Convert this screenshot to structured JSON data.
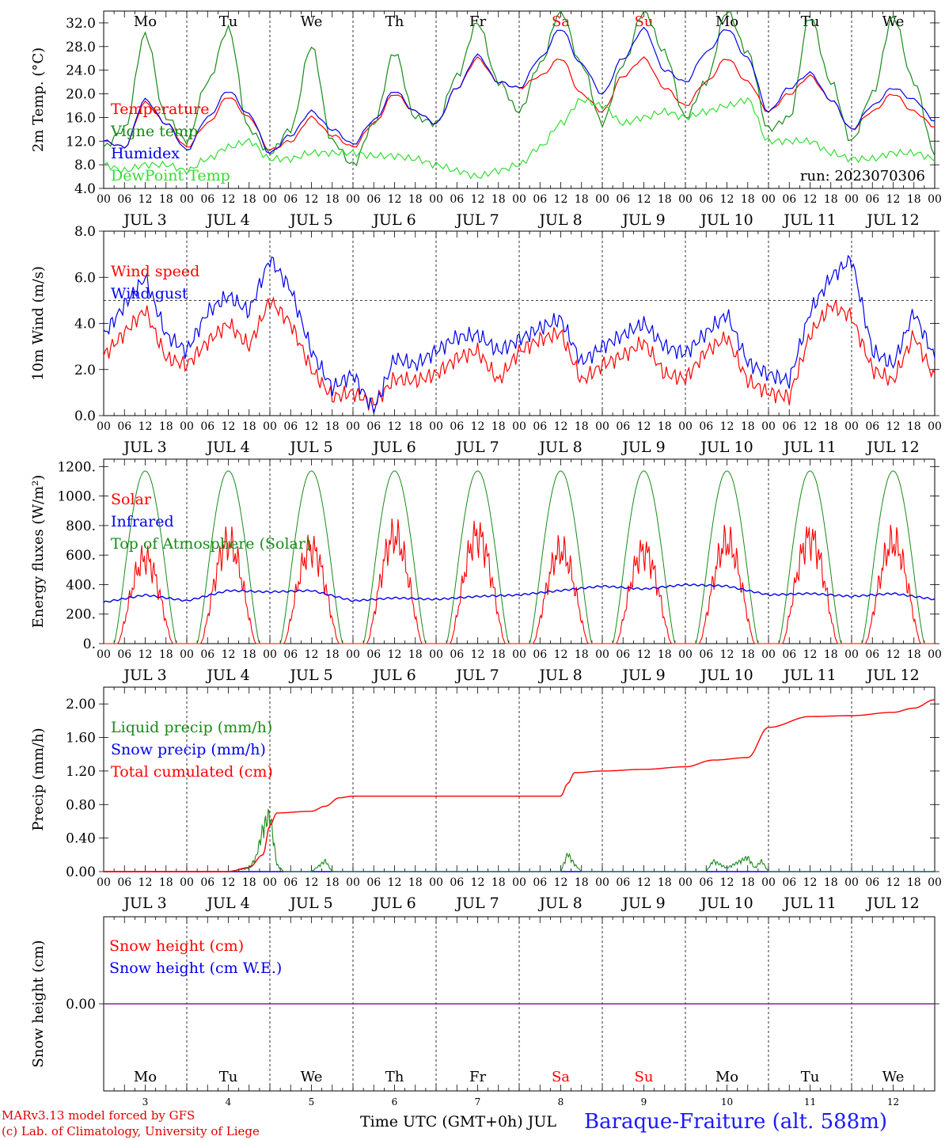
{
  "days": [
    {
      "dow": "Mo",
      "dom": "3",
      "weekend": false
    },
    {
      "dow": "Tu",
      "dom": "4",
      "weekend": false
    },
    {
      "dow": "We",
      "dom": "5",
      "weekend": false
    },
    {
      "dow": "Th",
      "dom": "6",
      "weekend": false
    },
    {
      "dow": "Fr",
      "dom": "7",
      "weekend": false
    },
    {
      "dow": "Sa",
      "dom": "8",
      "weekend": true
    },
    {
      "dow": "Su",
      "dom": "9",
      "weekend": true
    },
    {
      "dow": "Mo",
      "dom": "10",
      "weekend": false
    },
    {
      "dow": "Tu",
      "dom": "11",
      "weekend": false
    },
    {
      "dow": "We",
      "dom": "12",
      "weekend": false
    }
  ],
  "hour_ticks": [
    "00",
    "06",
    "12",
    "18"
  ],
  "month_label": "JUL",
  "colors": {
    "red": "#ff0000",
    "green": "#1a8a1a",
    "blue": "#0000ee",
    "lightgreen": "#33dd33",
    "purple": "#7a2b8a",
    "weekend": "#ff0000"
  },
  "footer": {
    "credit1": "MARv3.13 model forced by GFS",
    "credit2": "(c) Lab. of Climatology, University of Liege",
    "xunits": "Time UTC (GMT+0h) JUL",
    "station": "Baraque-Fraiture (alt. 588m)"
  },
  "chart_data": [
    {
      "type": "line",
      "ylabel": "2m Temp. (oC)",
      "ylim": [
        4,
        34
      ],
      "yticks": [
        "4.0",
        "8.0",
        "12.0",
        "16.0",
        "20.0",
        "24.0",
        "28.0",
        "32.0"
      ],
      "annotation": "run: 2023070306",
      "x_hours": [
        0,
        6,
        12,
        18,
        24,
        30,
        36,
        42,
        48,
        54,
        60,
        66,
        72,
        78,
        84,
        90,
        96,
        102,
        108,
        114,
        120,
        126,
        132,
        138,
        144,
        150,
        156,
        162,
        168,
        174,
        180,
        186,
        192,
        198,
        204,
        210,
        216,
        222,
        228,
        234,
        240
      ],
      "series": [
        {
          "name": "Temperature",
          "color": "red",
          "values": [
            12,
            11,
            18.5,
            15,
            11,
            15,
            19.5,
            16,
            10.5,
            12,
            16,
            13,
            11,
            15,
            20,
            17,
            15,
            21,
            26,
            22,
            21,
            23,
            26,
            20,
            17,
            23,
            26,
            21,
            18,
            22,
            26,
            22,
            17,
            20,
            23,
            19,
            14,
            17,
            20,
            17,
            14.5
          ]
        },
        {
          "name": "Vigne temp",
          "color": "green",
          "values": [
            11,
            14,
            30,
            16,
            12,
            22,
            31,
            14,
            10,
            14,
            28,
            12,
            8,
            15,
            27,
            16,
            15,
            23,
            32,
            22,
            17,
            25,
            34,
            25,
            15,
            25,
            34,
            27,
            16,
            22,
            34,
            27,
            14,
            16,
            33,
            22,
            12,
            20,
            33,
            22,
            10
          ]
        },
        {
          "name": "Humidex",
          "color": "blue",
          "values": [
            12,
            11,
            19,
            15,
            10.5,
            16,
            20.5,
            16.5,
            10,
            13,
            17,
            14,
            11.5,
            15.5,
            20.5,
            17,
            15,
            21,
            26.5,
            22,
            21,
            26,
            31,
            25,
            20,
            26,
            31,
            24,
            22,
            27,
            31,
            26,
            17,
            21,
            23.5,
            19,
            14,
            18,
            21,
            19,
            15.5
          ]
        },
        {
          "name": "DewPoint Temp",
          "color": "lightgreen",
          "values": [
            8,
            7,
            8,
            8,
            7,
            9,
            11,
            12,
            9,
            9,
            10,
            10,
            10,
            9.5,
            9.5,
            9,
            8,
            7,
            6,
            7,
            8,
            11,
            15,
            19,
            18,
            15,
            16,
            17,
            16,
            17,
            18,
            19,
            12,
            12,
            12,
            10,
            9,
            9,
            10,
            10,
            9
          ]
        }
      ]
    },
    {
      "type": "line",
      "ylabel": "10m Wind (m/s)",
      "ylim": [
        0,
        8
      ],
      "yticks": [
        "0.0",
        "2.0",
        "4.0",
        "6.0",
        "8.0"
      ],
      "ref_line": 5,
      "x_hours": [
        0,
        6,
        12,
        18,
        24,
        30,
        36,
        42,
        48,
        54,
        60,
        66,
        72,
        78,
        84,
        90,
        96,
        102,
        108,
        114,
        120,
        126,
        132,
        138,
        144,
        150,
        156,
        162,
        168,
        174,
        180,
        186,
        192,
        198,
        204,
        210,
        216,
        222,
        228,
        234,
        240
      ],
      "series": [
        {
          "name": "Wind speed",
          "color": "red",
          "values": [
            2.6,
            3.6,
            4.6,
            2.5,
            2.2,
            3.2,
            4,
            3,
            5,
            4,
            2,
            0.8,
            1,
            0.5,
            1.6,
            1.5,
            1.8,
            2.5,
            2.8,
            1.5,
            2.8,
            3.3,
            3.6,
            1.5,
            2.2,
            2.6,
            3.2,
            1.8,
            1.6,
            2.8,
            3.4,
            1.5,
            1,
            0.8,
            3.5,
            4.8,
            4.3,
            2,
            1.5,
            3.5,
            1.6
          ]
        },
        {
          "name": "Wind gust",
          "color": "blue",
          "values": [
            3.5,
            4.8,
            6,
            3.5,
            2.8,
            4.5,
            5.2,
            4.5,
            6.8,
            5.5,
            2.8,
            1.2,
            1.8,
            0.2,
            2.5,
            2.2,
            2.8,
            3.4,
            3.5,
            2.8,
            3.3,
            3.8,
            4.2,
            2.3,
            3,
            3.5,
            4,
            3,
            2.7,
            3.6,
            4.4,
            2.3,
            1.8,
            1.5,
            4.5,
            6,
            6.8,
            2.8,
            2.2,
            4.5,
            2.5
          ]
        }
      ]
    },
    {
      "type": "line",
      "ylabel": "Energy fluxes (W/m2)",
      "ylim": [
        0,
        1250
      ],
      "yticks": [
        "0.",
        "200.",
        "400.",
        "600.",
        "800.",
        "1000.",
        "1200."
      ],
      "series": [
        {
          "name": "Solar",
          "color": "red",
          "peaks": [
            700,
            830,
            780,
            880,
            890,
            760,
            760,
            830,
            870,
            830
          ]
        },
        {
          "name": "Infrared",
          "color": "blue",
          "x_hours": [
            0,
            12,
            24,
            36,
            48,
            60,
            72,
            84,
            96,
            108,
            120,
            132,
            144,
            156,
            168,
            180,
            192,
            204,
            216,
            228,
            240
          ],
          "values": [
            280,
            330,
            290,
            360,
            350,
            360,
            290,
            310,
            300,
            320,
            330,
            360,
            390,
            370,
            400,
            390,
            330,
            340,
            320,
            340,
            300
          ]
        },
        {
          "name": "Top of Atmosphere (Solar)",
          "color": "green",
          "peak": 1170
        }
      ]
    },
    {
      "type": "line",
      "ylabel": "Precip (mm/h)",
      "ylim": [
        0,
        2.2
      ],
      "yticks": [
        "0.00",
        "0.40",
        "0.80",
        "1.20",
        "1.60",
        "2.00"
      ],
      "series": [
        {
          "name": "Liquid precip (mm/h)",
          "color": "green",
          "x_hours": [
            0,
            36,
            42,
            44,
            46,
            48,
            50,
            52,
            60,
            64,
            66,
            72,
            132,
            134,
            136,
            138,
            174,
            176,
            180,
            186,
            188,
            190,
            192,
            198,
            240
          ],
          "values": [
            0,
            0,
            0.05,
            0.2,
            0.6,
            0.8,
            0.1,
            0,
            0,
            0.15,
            0,
            0,
            0,
            0.25,
            0.1,
            0,
            0,
            0.15,
            0.05,
            0.2,
            0.05,
            0.15,
            0,
            0,
            0
          ]
        },
        {
          "name": "Snow precip (mm/h)",
          "color": "blue",
          "values": []
        },
        {
          "name": "Total cumulated (cm)",
          "color": "red",
          "x_hours": [
            0,
            36,
            42,
            46,
            48,
            50,
            60,
            64,
            68,
            72,
            120,
            132,
            134,
            136,
            144,
            156,
            168,
            176,
            186,
            192,
            204,
            216,
            228,
            234,
            240
          ],
          "values": [
            0,
            0,
            0.05,
            0.2,
            0.55,
            0.7,
            0.72,
            0.78,
            0.88,
            0.9,
            0.9,
            0.9,
            1.05,
            1.18,
            1.2,
            1.22,
            1.25,
            1.33,
            1.36,
            1.72,
            1.85,
            1.86,
            1.9,
            1.95,
            2.05
          ]
        }
      ]
    },
    {
      "type": "line",
      "ylabel": "Snow height (cm)",
      "ylim": [
        -1,
        1
      ],
      "yticks": [
        "0.00"
      ],
      "series": [
        {
          "name": "Snow height (cm)",
          "color": "red",
          "values": [
            0
          ]
        },
        {
          "name": "Snow height (cm W.E.)",
          "color": "blue",
          "values": [
            0
          ]
        }
      ]
    }
  ]
}
